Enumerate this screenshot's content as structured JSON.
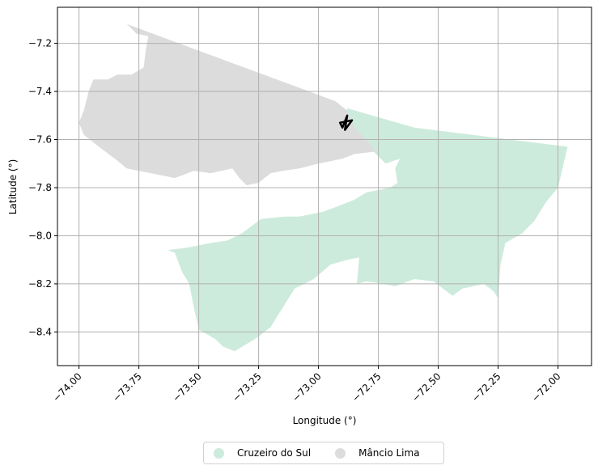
{
  "chart_data": {
    "type": "map",
    "xlabel": "Longitude (°)",
    "ylabel": "Latitude (°)",
    "xlim": [
      -74.09,
      -71.86
    ],
    "ylim": [
      -8.54,
      -7.05
    ],
    "xticks": [
      -74.0,
      -73.75,
      -73.5,
      -73.25,
      -73.0,
      -72.75,
      -72.5,
      -72.25,
      -72.0
    ],
    "xtick_labels": [
      "−74.00",
      "−73.75",
      "−73.50",
      "−73.25",
      "−73.00",
      "−72.75",
      "−72.50",
      "−72.25",
      "−72.00"
    ],
    "yticks": [
      -7.2,
      -7.4,
      -7.6,
      -7.8,
      -8.0,
      -8.2,
      -8.4
    ],
    "ytick_labels": [
      "−7.2",
      "−7.4",
      "−7.6",
      "−7.8",
      "−8.0",
      "−8.2",
      "−8.4"
    ],
    "grid": true,
    "legend_position": "bottom-center",
    "series": [
      {
        "name": "Cruzeiro do Sul",
        "color": "#cdebdc",
        "polygon": [
          [
            -72.88,
            -7.47
          ],
          [
            -72.6,
            -7.55
          ],
          [
            -71.96,
            -7.63
          ],
          [
            -72.0,
            -7.8
          ],
          [
            -72.05,
            -7.86
          ],
          [
            -72.1,
            -7.94
          ],
          [
            -72.15,
            -7.99
          ],
          [
            -72.22,
            -8.03
          ],
          [
            -72.24,
            -8.12
          ],
          [
            -72.25,
            -8.26
          ],
          [
            -72.27,
            -8.23
          ],
          [
            -72.31,
            -8.2
          ],
          [
            -72.4,
            -8.22
          ],
          [
            -72.44,
            -8.25
          ],
          [
            -72.52,
            -8.19
          ],
          [
            -72.6,
            -8.18
          ],
          [
            -72.68,
            -8.21
          ],
          [
            -72.73,
            -8.2
          ],
          [
            -72.8,
            -8.19
          ],
          [
            -72.84,
            -8.2
          ],
          [
            -72.83,
            -8.09
          ],
          [
            -72.88,
            -8.1
          ],
          [
            -72.95,
            -8.12
          ],
          [
            -73.02,
            -8.18
          ],
          [
            -73.1,
            -8.22
          ],
          [
            -73.15,
            -8.3
          ],
          [
            -73.2,
            -8.38
          ],
          [
            -73.25,
            -8.42
          ],
          [
            -73.3,
            -8.45
          ],
          [
            -73.35,
            -8.48
          ],
          [
            -73.4,
            -8.46
          ],
          [
            -73.43,
            -8.43
          ],
          [
            -73.5,
            -8.39
          ],
          [
            -73.52,
            -8.3
          ],
          [
            -73.54,
            -8.2
          ],
          [
            -73.57,
            -8.15
          ],
          [
            -73.6,
            -8.07
          ],
          [
            -73.63,
            -8.06
          ],
          [
            -73.55,
            -8.05
          ],
          [
            -73.45,
            -8.03
          ],
          [
            -73.38,
            -8.02
          ],
          [
            -73.32,
            -7.99
          ],
          [
            -73.24,
            -7.93
          ],
          [
            -73.14,
            -7.92
          ],
          [
            -73.08,
            -7.92
          ],
          [
            -72.98,
            -7.9
          ],
          [
            -72.9,
            -7.87
          ],
          [
            -72.85,
            -7.85
          ],
          [
            -72.8,
            -7.82
          ],
          [
            -72.7,
            -7.8
          ],
          [
            -72.67,
            -7.78
          ],
          [
            -72.68,
            -7.72
          ],
          [
            -72.66,
            -7.68
          ],
          [
            -72.72,
            -7.7
          ],
          [
            -72.77,
            -7.65
          ],
          [
            -72.8,
            -7.6
          ],
          [
            -72.85,
            -7.56
          ],
          [
            -72.88,
            -7.5
          ]
        ]
      },
      {
        "name": "Mâncio Lima",
        "color": "#dcdcdc",
        "polygon": [
          [
            -73.8,
            -7.12
          ],
          [
            -72.93,
            -7.44
          ],
          [
            -72.88,
            -7.48
          ],
          [
            -72.85,
            -7.55
          ],
          [
            -72.8,
            -7.6
          ],
          [
            -72.76,
            -7.65
          ],
          [
            -72.85,
            -7.66
          ],
          [
            -72.9,
            -7.68
          ],
          [
            -72.95,
            -7.69
          ],
          [
            -73.0,
            -7.7
          ],
          [
            -73.08,
            -7.72
          ],
          [
            -73.15,
            -7.73
          ],
          [
            -73.2,
            -7.74
          ],
          [
            -73.25,
            -7.78
          ],
          [
            -73.3,
            -7.79
          ],
          [
            -73.33,
            -7.76
          ],
          [
            -73.36,
            -7.72
          ],
          [
            -73.45,
            -7.74
          ],
          [
            -73.52,
            -7.73
          ],
          [
            -73.6,
            -7.76
          ],
          [
            -73.7,
            -7.74
          ],
          [
            -73.8,
            -7.72
          ],
          [
            -73.85,
            -7.68
          ],
          [
            -73.93,
            -7.62
          ],
          [
            -73.98,
            -7.58
          ],
          [
            -74.0,
            -7.53
          ],
          [
            -73.98,
            -7.48
          ],
          [
            -73.96,
            -7.4
          ],
          [
            -73.94,
            -7.35
          ],
          [
            -73.88,
            -7.35
          ],
          [
            -73.84,
            -7.33
          ],
          [
            -73.78,
            -7.33
          ],
          [
            -73.73,
            -7.3
          ],
          [
            -73.72,
            -7.22
          ],
          [
            -73.71,
            -7.17
          ],
          [
            -73.76,
            -7.16
          ]
        ]
      }
    ],
    "marker": {
      "shape": "outline",
      "color": "#000000",
      "polygon": [
        [
          -72.91,
          -7.53
        ],
        [
          -72.86,
          -7.52
        ],
        [
          -72.89,
          -7.56
        ],
        [
          -72.88,
          -7.5
        ],
        [
          -72.9,
          -7.55
        ]
      ]
    }
  }
}
